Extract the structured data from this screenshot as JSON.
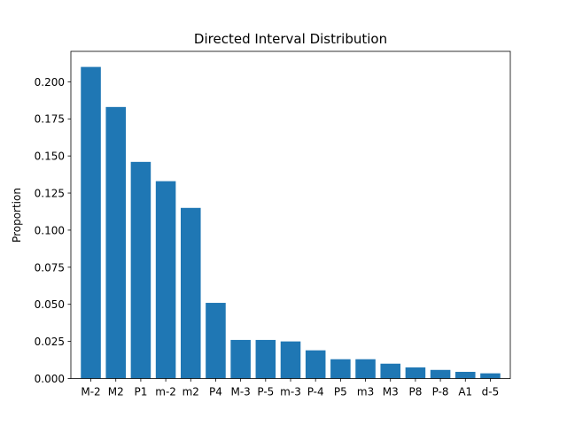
{
  "chart_data": {
    "type": "bar",
    "title": "Directed Interval Distribution",
    "xlabel": "",
    "ylabel": "Proportion",
    "categories": [
      "M-2",
      "M2",
      "P1",
      "m-2",
      "m2",
      "P4",
      "M-3",
      "P-5",
      "m-3",
      "P-4",
      "P5",
      "m3",
      "M3",
      "P8",
      "P-8",
      "A1",
      "d-5"
    ],
    "values": [
      0.21,
      0.183,
      0.146,
      0.133,
      0.115,
      0.051,
      0.026,
      0.026,
      0.025,
      0.019,
      0.013,
      0.013,
      0.01,
      0.0075,
      0.0058,
      0.0045,
      0.0035
    ],
    "ylim": [
      0,
      0.2205
    ],
    "yticks": [
      0.0,
      0.025,
      0.05,
      0.075,
      0.1,
      0.125,
      0.15,
      0.175,
      0.2
    ],
    "ytick_labels": [
      "0.000",
      "0.025",
      "0.050",
      "0.075",
      "0.100",
      "0.125",
      "0.150",
      "0.175",
      "0.200"
    ],
    "bar_color": "#1f77b4",
    "grid": false,
    "legend": "none"
  }
}
